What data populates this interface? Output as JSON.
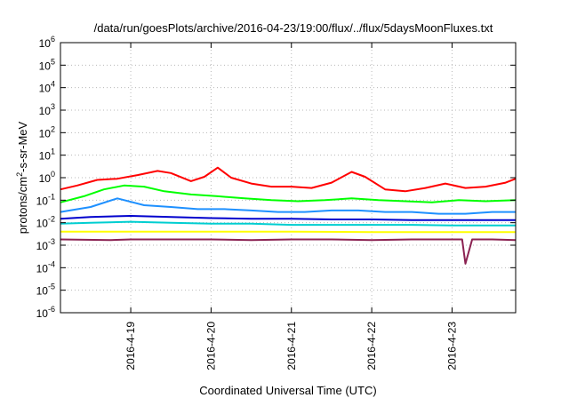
{
  "chart_data": {
    "type": "line",
    "title": "/data/run/goesPlots/archive/2016-04-23/19:00/flux/../flux/5daysMoonFluxes.txt",
    "xlabel": "Coordinated Universal Time (UTC)",
    "ylabel": {
      "base": "protons/cm",
      "sup": "2",
      "rest": "-s-sr-MeV"
    },
    "y_scale": "log",
    "ylim": [
      1e-06,
      1000000.0
    ],
    "y_ticks": [
      {
        "value": 1e-06,
        "base": "10",
        "exp": "-6"
      },
      {
        "value": 1e-05,
        "base": "10",
        "exp": "-5"
      },
      {
        "value": 0.0001,
        "base": "10",
        "exp": "-4"
      },
      {
        "value": 0.001,
        "base": "10",
        "exp": "-3"
      },
      {
        "value": 0.01,
        "base": "10",
        "exp": "-2"
      },
      {
        "value": 0.1,
        "base": "10",
        "exp": "-1"
      },
      {
        "value": 1.0,
        "base": "10",
        "exp": "0"
      },
      {
        "value": 10.0,
        "base": "10",
        "exp": "1"
      },
      {
        "value": 100.0,
        "base": "10",
        "exp": "2"
      },
      {
        "value": 1000.0,
        "base": "10",
        "exp": "3"
      },
      {
        "value": 10000.0,
        "base": "10",
        "exp": "4"
      },
      {
        "value": 100000.0,
        "base": "10",
        "exp": "5"
      },
      {
        "value": 1000000.0,
        "base": "10",
        "exp": "6"
      }
    ],
    "xlim": [
      "2016-04-18 03:00",
      "2016-04-23 19:00"
    ],
    "x_ticks": [
      {
        "value": "2016-04-19 00:00",
        "label": "2016-4-19"
      },
      {
        "value": "2016-04-20 00:00",
        "label": "2016-4-20"
      },
      {
        "value": "2016-04-21 00:00",
        "label": "2016-4-21"
      },
      {
        "value": "2016-04-22 00:00",
        "label": "2016-4-22"
      },
      {
        "value": "2016-04-23 00:00",
        "label": "2016-4-23"
      }
    ],
    "grid": true,
    "series": [
      {
        "color": "#ff0000",
        "x": [
          "2016-04-18 03:00",
          "2016-04-18 08:00",
          "2016-04-18 14:00",
          "2016-04-18 20:00",
          "2016-04-19 02:00",
          "2016-04-19 08:00",
          "2016-04-19 12:00",
          "2016-04-19 18:00",
          "2016-04-19 22:00",
          "2016-04-20 02:00",
          "2016-04-20 06:00",
          "2016-04-20 12:00",
          "2016-04-20 18:00",
          "2016-04-21 00:00",
          "2016-04-21 06:00",
          "2016-04-21 12:00",
          "2016-04-21 18:00",
          "2016-04-21 22:00",
          "2016-04-22 04:00",
          "2016-04-22 10:00",
          "2016-04-22 16:00",
          "2016-04-22 22:00",
          "2016-04-23 04:00",
          "2016-04-23 10:00",
          "2016-04-23 16:00",
          "2016-04-23 19:00"
        ],
        "values": [
          0.3,
          0.45,
          0.8,
          0.9,
          1.3,
          2.0,
          1.6,
          0.7,
          1.1,
          2.8,
          1.0,
          0.55,
          0.4,
          0.4,
          0.35,
          0.6,
          1.8,
          1.1,
          0.3,
          0.25,
          0.35,
          0.55,
          0.35,
          0.4,
          0.6,
          0.9
        ]
      },
      {
        "color": "#00ff00",
        "x": [
          "2016-04-18 03:00",
          "2016-04-18 10:00",
          "2016-04-18 16:00",
          "2016-04-18 22:00",
          "2016-04-19 04:00",
          "2016-04-19 10:00",
          "2016-04-19 18:00",
          "2016-04-20 02:00",
          "2016-04-20 10:00",
          "2016-04-20 18:00",
          "2016-04-21 02:00",
          "2016-04-21 10:00",
          "2016-04-21 18:00",
          "2016-04-22 02:00",
          "2016-04-22 10:00",
          "2016-04-22 18:00",
          "2016-04-23 02:00",
          "2016-04-23 10:00",
          "2016-04-23 19:00"
        ],
        "values": [
          0.08,
          0.15,
          0.3,
          0.45,
          0.4,
          0.25,
          0.18,
          0.15,
          0.12,
          0.1,
          0.09,
          0.1,
          0.12,
          0.1,
          0.09,
          0.08,
          0.1,
          0.09,
          0.1
        ]
      },
      {
        "color": "#1e90ff",
        "x": [
          "2016-04-18 03:00",
          "2016-04-18 12:00",
          "2016-04-18 20:00",
          "2016-04-19 04:00",
          "2016-04-19 12:00",
          "2016-04-19 20:00",
          "2016-04-20 04:00",
          "2016-04-20 12:00",
          "2016-04-20 20:00",
          "2016-04-21 04:00",
          "2016-04-21 12:00",
          "2016-04-21 20:00",
          "2016-04-22 04:00",
          "2016-04-22 12:00",
          "2016-04-22 20:00",
          "2016-04-23 04:00",
          "2016-04-23 12:00",
          "2016-04-23 19:00"
        ],
        "values": [
          0.03,
          0.05,
          0.12,
          0.06,
          0.05,
          0.04,
          0.04,
          0.035,
          0.03,
          0.03,
          0.035,
          0.035,
          0.03,
          0.03,
          0.025,
          0.025,
          0.03,
          0.03
        ]
      },
      {
        "color": "#0000cd",
        "x": [
          "2016-04-18 03:00",
          "2016-04-18 12:00",
          "2016-04-19 00:00",
          "2016-04-19 12:00",
          "2016-04-20 00:00",
          "2016-04-20 12:00",
          "2016-04-21 00:00",
          "2016-04-21 12:00",
          "2016-04-22 00:00",
          "2016-04-22 12:00",
          "2016-04-23 00:00",
          "2016-04-23 12:00",
          "2016-04-23 19:00"
        ],
        "values": [
          0.015,
          0.018,
          0.02,
          0.018,
          0.016,
          0.015,
          0.015,
          0.014,
          0.014,
          0.013,
          0.013,
          0.013,
          0.013
        ]
      },
      {
        "color": "#00ced1",
        "x": [
          "2016-04-18 03:00",
          "2016-04-18 12:00",
          "2016-04-19 00:00",
          "2016-04-19 12:00",
          "2016-04-20 00:00",
          "2016-04-20 12:00",
          "2016-04-21 00:00",
          "2016-04-21 12:00",
          "2016-04-22 00:00",
          "2016-04-22 12:00",
          "2016-04-23 00:00",
          "2016-04-23 12:00",
          "2016-04-23 19:00"
        ],
        "values": [
          0.009,
          0.01,
          0.011,
          0.01,
          0.009,
          0.009,
          0.008,
          0.008,
          0.008,
          0.008,
          0.0075,
          0.0075,
          0.0075
        ]
      },
      {
        "color": "#ffff00",
        "x": [
          "2016-04-18 03:00",
          "2016-04-19 00:00",
          "2016-04-20 00:00",
          "2016-04-21 00:00",
          "2016-04-22 00:00",
          "2016-04-23 00:00",
          "2016-04-23 19:00"
        ],
        "values": [
          0.004,
          0.004,
          0.004,
          0.004,
          0.0038,
          0.0038,
          0.0038
        ]
      },
      {
        "color": "#8b2252",
        "x": [
          "2016-04-18 03:00",
          "2016-04-18 18:00",
          "2016-04-19 00:00",
          "2016-04-19 12:00",
          "2016-04-20 00:00",
          "2016-04-20 12:00",
          "2016-04-21 00:00",
          "2016-04-21 12:00",
          "2016-04-22 00:00",
          "2016-04-22 12:00",
          "2016-04-23 00:00",
          "2016-04-23 03:00",
          "2016-04-23 04:00",
          "2016-04-23 06:00",
          "2016-04-23 12:00",
          "2016-04-23 19:00"
        ],
        "values": [
          0.0018,
          0.0017,
          0.0018,
          0.0018,
          0.0018,
          0.0017,
          0.0018,
          0.0018,
          0.0017,
          0.0018,
          0.0018,
          0.0018,
          0.00015,
          0.0018,
          0.0018,
          0.0017
        ]
      }
    ]
  }
}
